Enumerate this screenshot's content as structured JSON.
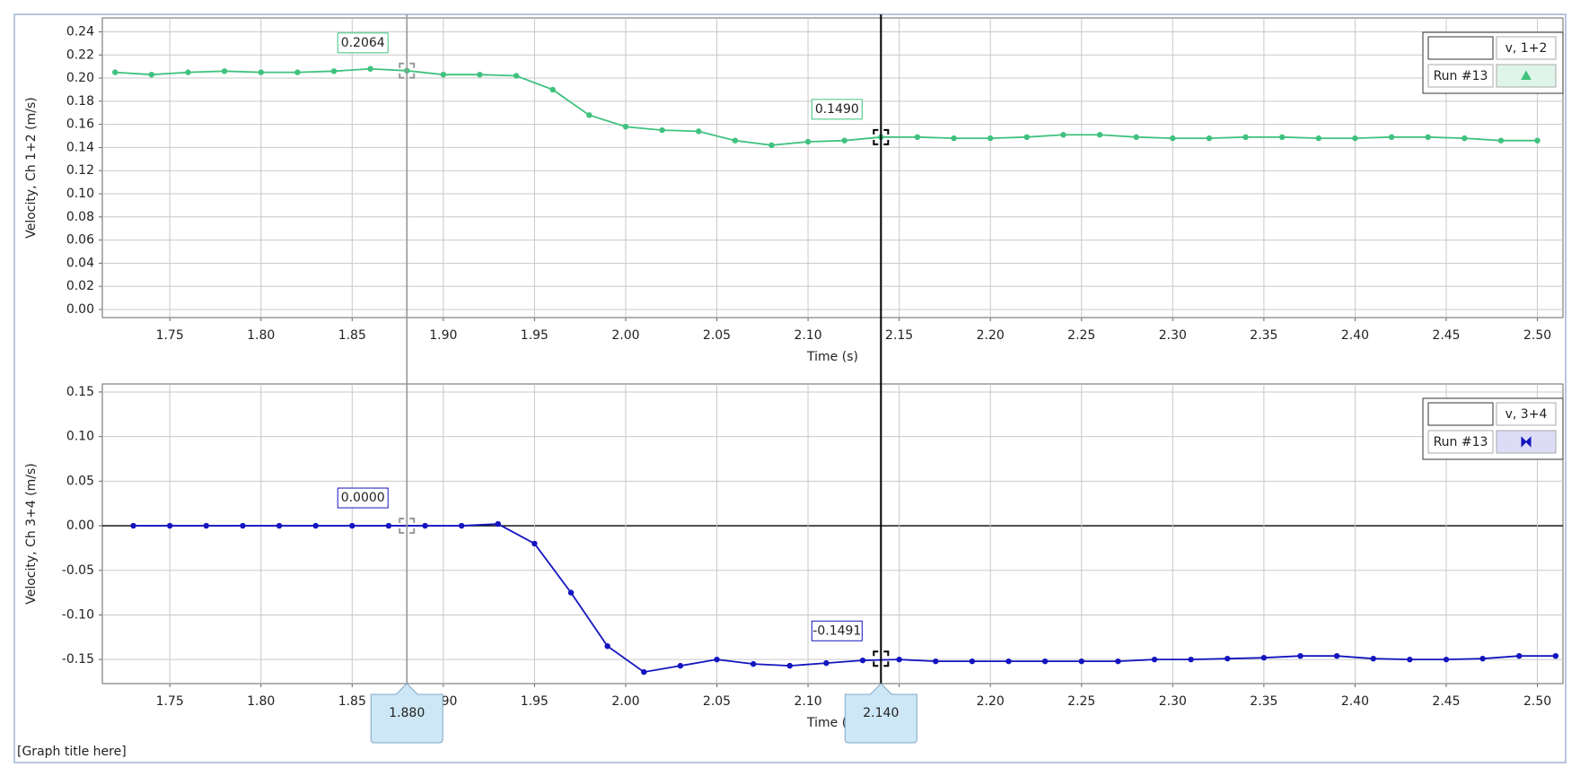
{
  "chart_data": [
    {
      "type": "line",
      "ylabel": "Velocity, Ch 1+2 (m/s)",
      "xlabel": "Time (s)",
      "legend_header": "v, 1+2",
      "xlim": [
        1.713,
        2.514
      ],
      "ylim": [
        -0.007,
        0.252
      ],
      "grid": true,
      "legend": "upper right",
      "xticks": [
        1.75,
        {
          "value": 1.8,
          "label": "1.80"
        },
        1.85,
        {
          "value": 1.9,
          "label": "1.90"
        },
        1.95,
        {
          "value": 2,
          "label": "2.00"
        },
        2.05,
        {
          "value": 2.1,
          "label": "2.10"
        },
        2.15,
        {
          "value": 2.2,
          "label": "2.20"
        },
        2.25,
        {
          "value": 2.3,
          "label": "2.30"
        },
        2.35,
        {
          "value": 2.4,
          "label": "2.40"
        },
        2.45,
        {
          "value": 2.5,
          "label": "2.50"
        }
      ],
      "yticks": [
        {
          "value": 0,
          "label": "0.00"
        },
        0.02,
        0.04,
        0.06,
        0.08,
        {
          "value": 0.1,
          "label": "0.10"
        },
        0.12,
        0.14,
        0.16,
        0.18,
        {
          "value": 0.2,
          "label": "0.20"
        },
        0.22,
        0.24
      ],
      "x": [
        1.72,
        1.74,
        1.76,
        1.78,
        1.8,
        1.82,
        1.84,
        1.86,
        1.88,
        1.9,
        1.92,
        1.94,
        1.96,
        1.98,
        2.0,
        2.02,
        2.04,
        2.06,
        2.08,
        2.1,
        2.12,
        2.14,
        2.16,
        2.18,
        2.2,
        2.22,
        2.24,
        2.26,
        2.28,
        2.3,
        2.32,
        2.34,
        2.36,
        2.38,
        2.4,
        2.42,
        2.44,
        2.46,
        2.48,
        2.5
      ],
      "series": [
        {
          "name": "Run #13",
          "color": "#3fc27e",
          "values": [
            0.205,
            0.203,
            0.205,
            0.206,
            0.205,
            0.205,
            0.206,
            0.208,
            0.2064,
            0.203,
            0.203,
            0.202,
            0.19,
            0.168,
            0.158,
            0.155,
            0.154,
            0.146,
            0.142,
            0.145,
            0.146,
            0.149,
            0.149,
            0.148,
            0.148,
            0.149,
            0.151,
            0.151,
            0.149,
            0.148,
            0.148,
            0.149,
            0.149,
            0.148,
            0.148,
            0.149,
            0.149,
            0.148,
            0.146,
            0.146
          ]
        }
      ],
      "annotations": [
        {
          "x": 1.88,
          "y": 0.2064,
          "label": "0.2064"
        },
        {
          "x": 2.14,
          "y": 0.149,
          "label": "0.1490"
        }
      ]
    },
    {
      "type": "line",
      "ylabel": "Velocity, Ch 3+4 (m/s)",
      "xlabel": "Time (s)",
      "legend_header": "v, 3+4",
      "xlim": [
        1.713,
        2.514
      ],
      "ylim": [
        -0.177,
        0.159
      ],
      "grid": true,
      "legend": "upper right",
      "xticks": [
        1.75,
        {
          "value": 1.8,
          "label": "1.80"
        },
        1.85,
        {
          "value": 1.9,
          "label": "1.90"
        },
        1.95,
        {
          "value": 2,
          "label": "2.00"
        },
        2.05,
        {
          "value": 2.1,
          "label": "2.10"
        },
        2.15,
        {
          "value": 2.2,
          "label": "2.20"
        },
        2.25,
        {
          "value": 2.3,
          "label": "2.30"
        },
        2.35,
        {
          "value": 2.4,
          "label": "2.40"
        },
        2.45,
        {
          "value": 2.5,
          "label": "2.50"
        }
      ],
      "yticks": [
        -0.15,
        {
          "value": -0.1,
          "label": "-0.10"
        },
        -0.05,
        {
          "value": 0,
          "label": "0.00"
        },
        0.05,
        {
          "value": 0.1,
          "label": "0.10"
        },
        0.15
      ],
      "x": [
        1.73,
        1.75,
        1.77,
        1.79,
        1.81,
        1.83,
        1.85,
        1.87,
        1.89,
        1.91,
        1.93,
        1.95,
        1.97,
        1.99,
        2.01,
        2.03,
        2.05,
        2.07,
        2.09,
        2.11,
        2.13,
        2.15,
        2.17,
        2.19,
        2.21,
        2.23,
        2.25,
        2.27,
        2.29,
        2.31,
        2.33,
        2.35,
        2.37,
        2.39,
        2.41,
        2.43,
        2.45,
        2.47,
        2.49,
        2.51
      ],
      "series": [
        {
          "name": "Run #13",
          "color": "#1414c0",
          "values": [
            0,
            0,
            0,
            0,
            0,
            0,
            0,
            0,
            0,
            0,
            0.002,
            -0.02,
            -0.075,
            -0.135,
            -0.164,
            -0.157,
            -0.15,
            -0.155,
            -0.157,
            -0.154,
            -0.151,
            -0.15,
            -0.152,
            -0.152,
            -0.152,
            -0.152,
            -0.152,
            -0.152,
            -0.15,
            -0.15,
            -0.149,
            -0.148,
            -0.146,
            -0.146,
            -0.149,
            -0.15,
            -0.15,
            -0.149,
            -0.146,
            -0.146
          ]
        }
      ],
      "annotations": [
        {
          "x": 1.88,
          "y": 0,
          "label": "0.0000"
        },
        {
          "x": 2.14,
          "y": -0.1491,
          "label": "-0.1491"
        }
      ]
    }
  ],
  "cursors": [
    {
      "value": 1.88,
      "label": "1.880"
    },
    {
      "value": 2.14,
      "label": "2.140"
    }
  ],
  "footer": "[Graph title here]"
}
